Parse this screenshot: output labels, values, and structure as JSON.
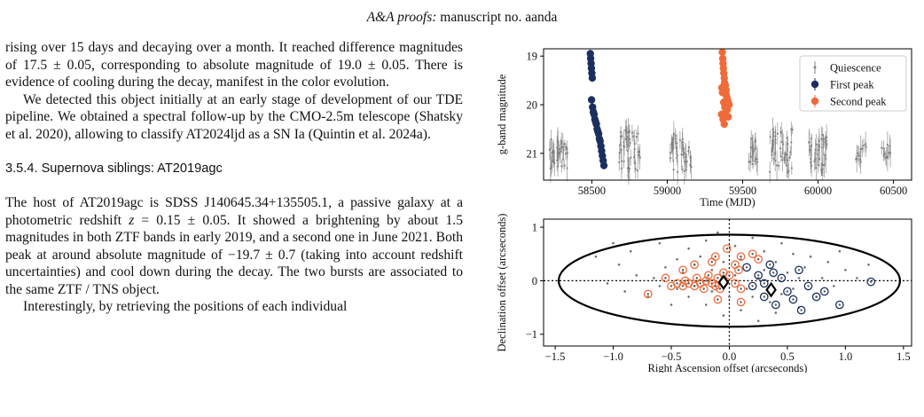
{
  "header": {
    "journal": "A&A proofs:",
    "manuscript": "manuscript no. aanda"
  },
  "body": {
    "p1": "rising over 15 days and decaying over a month. It reached difference magnitudes of 17.5 ± 0.05, corresponding to absolute magnitude of 19.0 ± 0.05. There is evidence of cooling during the decay, manifest in the color evolution.",
    "p2": "We detected this object initially at an early stage of development of our TDE pipeline. We obtained a spectral follow-up by the CMO-2.5m telescope (Shatsky et al. 2020), allowing to classify AT2024ljd as a SN Ia (Quintin et al. 2024a).",
    "section": "3.5.4. Supernova siblings: AT2019agc",
    "p3_a": "The host of AT2019agc is SDSS J140645.34+135505.1, a passive galaxy at a photometric redshift ",
    "p3_z": "z",
    "p3_b": " = 0.15 ± 0.05. It showed a brightening by about 1.5 magnitudes in both ZTF bands in early 2019, and a second one in June 2021. Both peak at around absolute magnitude of −19.7 ± 0.7 (taking into account redshift uncertainties) and cool down during the decay. The two bursts are associated to the same ZTF / TNS object.",
    "p4": "Interestingly, by retrieving the positions of each individual"
  },
  "chart_data": [
    {
      "type": "scatter",
      "xlabel": "Time (MJD)",
      "ylabel": "g-band magnitude",
      "xlim": [
        58180,
        60620
      ],
      "ylim": [
        21.55,
        18.85
      ],
      "y_inverted": true,
      "xticks": [
        58500,
        59000,
        59500,
        60000,
        60500
      ],
      "yticks": [
        19,
        20,
        21
      ],
      "legend_position": "upper right",
      "colors": {
        "quiescence": "#808080",
        "first": "#1b2f5e",
        "second": "#f06b3a"
      },
      "series": [
        {
          "name": "Quiescence",
          "marker": "errorbar-dot",
          "clusters": [
            {
              "x0": 58220,
              "x1": 58340,
              "y0": 20.7,
              "y1": 21.35,
              "n": 40
            },
            {
              "x0": 58680,
              "x1": 58820,
              "y0": 20.5,
              "y1": 21.4,
              "n": 45
            },
            {
              "x0": 59020,
              "x1": 59160,
              "y0": 20.6,
              "y1": 21.4,
              "n": 40
            },
            {
              "x0": 59540,
              "x1": 59600,
              "y0": 20.7,
              "y1": 21.3,
              "n": 20
            },
            {
              "x0": 59680,
              "x1": 59830,
              "y0": 20.5,
              "y1": 21.4,
              "n": 45
            },
            {
              "x0": 59940,
              "x1": 60060,
              "y0": 20.6,
              "y1": 21.4,
              "n": 40
            },
            {
              "x0": 60250,
              "x1": 60320,
              "y0": 20.8,
              "y1": 21.2,
              "n": 12
            },
            {
              "x0": 60420,
              "x1": 60480,
              "y0": 20.8,
              "y1": 21.2,
              "n": 12
            }
          ]
        },
        {
          "name": "First peak",
          "marker": "dot",
          "points": [
            [
              58490,
              18.95
            ],
            [
              58492,
              19.05
            ],
            [
              58495,
              19.15
            ],
            [
              58497,
              19.25
            ],
            [
              58500,
              19.35
            ],
            [
              58503,
              19.45
            ],
            [
              58498,
              19.9
            ],
            [
              58505,
              20.05
            ],
            [
              58510,
              20.15
            ],
            [
              58515,
              20.2
            ],
            [
              58520,
              20.3
            ],
            [
              58525,
              20.35
            ],
            [
              58530,
              20.4
            ],
            [
              58535,
              20.5
            ],
            [
              58540,
              20.55
            ],
            [
              58545,
              20.6
            ],
            [
              58550,
              20.7
            ],
            [
              58555,
              20.75
            ],
            [
              58560,
              20.85
            ],
            [
              58565,
              20.95
            ],
            [
              58570,
              21.05
            ],
            [
              58575,
              21.15
            ],
            [
              58580,
              21.25
            ]
          ]
        },
        {
          "name": "Second peak",
          "marker": "dot",
          "points": [
            [
              59365,
              18.92
            ],
            [
              59368,
              19.05
            ],
            [
              59370,
              19.15
            ],
            [
              59372,
              19.25
            ],
            [
              59375,
              19.35
            ],
            [
              59378,
              19.45
            ],
            [
              59380,
              19.55
            ],
            [
              59385,
              19.6
            ],
            [
              59390,
              19.7
            ],
            [
              59392,
              19.8
            ],
            [
              59395,
              19.85
            ],
            [
              59400,
              19.9
            ],
            [
              59405,
              19.95
            ],
            [
              59410,
              20.0
            ],
            [
              59362,
              19.65
            ],
            [
              59366,
              19.75
            ],
            [
              59374,
              19.95
            ],
            [
              59382,
              20.05
            ],
            [
              59388,
              20.15
            ],
            [
              59398,
              20.1
            ],
            [
              59404,
              20.25
            ],
            [
              59360,
              20.2
            ],
            [
              59370,
              20.3
            ],
            [
              59378,
              20.4
            ]
          ]
        }
      ]
    },
    {
      "type": "scatter",
      "xlabel": "Right Ascension offset (arcseconds)",
      "ylabel": "Declination offset (arcseconds)",
      "xlim": [
        -1.6,
        1.57
      ],
      "ylim": [
        -1.22,
        1.15
      ],
      "xticks": [
        -1.5,
        -1.0,
        -0.5,
        0.0,
        0.5,
        1.0,
        1.5
      ],
      "xtick_labels": [
        "−1.5",
        "−1.0",
        "−0.5",
        "0.0",
        "0.5",
        "1.0",
        "1.5"
      ],
      "yticks": [
        -1,
        0,
        1
      ],
      "ytick_labels": [
        "−1",
        "0",
        "1"
      ],
      "ellipse": {
        "cx": 0.0,
        "cy": 0.0,
        "rx": 1.47,
        "ry": 0.86
      },
      "cross_lines_at": [
        0,
        0
      ],
      "colors": {
        "grey": "#707070",
        "first": "#1b2f5e",
        "second": "#f06b3a"
      },
      "series": [
        {
          "name": "",
          "marker": "dot",
          "points": [
            [
              -1.15,
              0.45
            ],
            [
              -0.85,
              0.55
            ],
            [
              -0.6,
              0.7
            ],
            [
              -0.45,
              0.4
            ],
            [
              -0.55,
              0.25
            ],
            [
              -0.35,
              0.6
            ],
            [
              -0.2,
              0.75
            ],
            [
              -0.1,
              0.9
            ],
            [
              0.05,
              0.65
            ],
            [
              0.2,
              0.8
            ],
            [
              0.3,
              0.55
            ],
            [
              0.45,
              0.7
            ],
            [
              0.55,
              0.5
            ],
            [
              0.7,
              0.45
            ],
            [
              0.85,
              0.35
            ],
            [
              1.0,
              0.2
            ],
            [
              1.1,
              0.05
            ],
            [
              0.9,
              -0.1
            ],
            [
              0.75,
              -0.3
            ],
            [
              0.6,
              -0.5
            ],
            [
              0.4,
              -0.6
            ],
            [
              0.25,
              -0.75
            ],
            [
              0.1,
              -0.55
            ],
            [
              -0.05,
              -0.65
            ],
            [
              -0.2,
              -0.45
            ],
            [
              -0.35,
              -0.3
            ],
            [
              -0.5,
              -0.45
            ],
            [
              -0.7,
              -0.3
            ],
            [
              -0.9,
              -0.2
            ],
            [
              -1.05,
              -0.05
            ],
            [
              -0.8,
              0.1
            ],
            [
              -0.65,
              0.05
            ],
            [
              -0.4,
              0.15
            ],
            [
              -0.3,
              -0.1
            ],
            [
              -0.15,
              0.2
            ],
            [
              0.05,
              0.1
            ],
            [
              0.15,
              -0.15
            ],
            [
              0.3,
              0.2
            ],
            [
              0.5,
              0.15
            ],
            [
              0.65,
              0.25
            ],
            [
              0.45,
              -0.25
            ],
            [
              0.2,
              -0.3
            ],
            [
              -0.05,
              0.35
            ],
            [
              -0.25,
              0.45
            ],
            [
              0.1,
              0.4
            ],
            [
              0.8,
              0.05
            ],
            [
              0.95,
              0.55
            ],
            [
              -0.95,
              0.3
            ],
            [
              -0.6,
              -0.1
            ],
            [
              0.35,
              -0.4
            ],
            [
              0.55,
              -0.15
            ],
            [
              -0.45,
              -0.15
            ],
            [
              1.2,
              0.3
            ],
            [
              -1.0,
              0.7
            ],
            [
              0.0,
              -0.3
            ],
            [
              -0.15,
              -0.2
            ],
            [
              0.25,
              0.05
            ],
            [
              0.4,
              0.35
            ],
            [
              -0.3,
              0.3
            ],
            [
              0.6,
              0.05
            ]
          ]
        },
        {
          "name": "",
          "marker": "ring",
          "points": [
            [
              0.15,
              0.25
            ],
            [
              0.25,
              0.1
            ],
            [
              0.3,
              -0.05
            ],
            [
              0.35,
              0.3
            ],
            [
              0.45,
              0.05
            ],
            [
              0.5,
              -0.2
            ],
            [
              0.55,
              -0.35
            ],
            [
              0.62,
              -0.55
            ],
            [
              0.68,
              -0.1
            ],
            [
              0.75,
              -0.3
            ],
            [
              0.82,
              -0.2
            ],
            [
              0.95,
              -0.45
            ],
            [
              0.4,
              -0.45
            ],
            [
              0.3,
              -0.3
            ],
            [
              0.2,
              -0.1
            ],
            [
              0.6,
              0.2
            ],
            [
              0.38,
              0.15
            ],
            [
              1.22,
              -0.02
            ]
          ]
        },
        {
          "name": "",
          "marker": "ring",
          "points": [
            [
              -0.7,
              -0.25
            ],
            [
              -0.55,
              0.05
            ],
            [
              -0.5,
              -0.1
            ],
            [
              -0.45,
              -0.05
            ],
            [
              -0.4,
              -0.1
            ],
            [
              -0.38,
              0.0
            ],
            [
              -0.35,
              -0.05
            ],
            [
              -0.3,
              -0.1
            ],
            [
              -0.28,
              0.05
            ],
            [
              -0.25,
              -0.05
            ],
            [
              -0.22,
              -0.15
            ],
            [
              -0.2,
              0.0
            ],
            [
              -0.18,
              0.1
            ],
            [
              -0.15,
              -0.05
            ],
            [
              -0.12,
              -0.1
            ],
            [
              -0.1,
              0.05
            ],
            [
              -0.08,
              -0.15
            ],
            [
              -0.05,
              0.15
            ],
            [
              0.0,
              0.1
            ],
            [
              0.05,
              -0.05
            ],
            [
              0.08,
              0.2
            ],
            [
              0.1,
              -0.15
            ],
            [
              -0.3,
              0.3
            ],
            [
              -0.15,
              0.35
            ],
            [
              0.1,
              0.45
            ],
            [
              0.05,
              0.3
            ],
            [
              -0.1,
              -0.35
            ],
            [
              0.1,
              -0.4
            ],
            [
              -0.02,
              0.6
            ],
            [
              -0.12,
              0.45
            ],
            [
              0.25,
              0.4
            ],
            [
              0.2,
              0.5
            ],
            [
              -0.4,
              0.2
            ]
          ]
        },
        {
          "name": "",
          "marker": "diamond",
          "points": [
            [
              -0.05,
              -0.03
            ],
            [
              0.36,
              -0.17
            ]
          ]
        }
      ]
    }
  ]
}
